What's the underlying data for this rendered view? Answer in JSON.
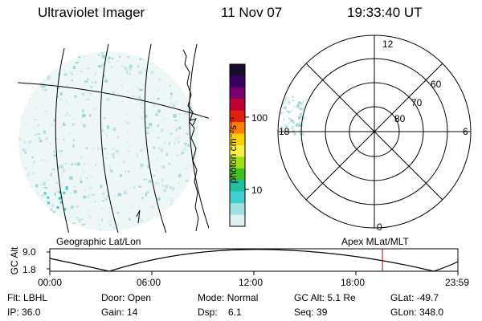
{
  "header": {
    "instrument": "Ultraviolet Imager",
    "date": "11 Nov 07",
    "time": "19:33:40 UT"
  },
  "colorbar": {
    "unit_label": "photon cm⁻²s⁻¹",
    "ticks": [
      "100",
      "10"
    ],
    "colors": [
      "#1a0a30",
      "#3a0060",
      "#7a0070",
      "#c00030",
      "#e02010",
      "#ff8000",
      "#ffd000",
      "#f8f040",
      "#a0e010",
      "#40c020",
      "#20c0a0",
      "#40d0d0",
      "#a0e0e0",
      "#e0f0f0"
    ]
  },
  "polar_plot": {
    "mlt_labels": {
      "top": "12",
      "left": "18",
      "right": "6",
      "bottom": "0"
    },
    "lat_labels": [
      "60",
      "70",
      "80"
    ]
  },
  "orbit_panel": {
    "left_label": "Geographic Lat/Lon",
    "right_label": "Apex MLat/MLT",
    "y_axis_label": "GC Alt",
    "y_ticks": [
      "9.0",
      "1.8"
    ],
    "x_ticks": [
      "00:00",
      "06:00",
      "12:00",
      "18:00",
      "23:59"
    ],
    "current_time_fraction": 0.8151,
    "marker_color": "#c00000"
  },
  "status": {
    "row1": [
      {
        "key": "Flt:",
        "value": "LBHL"
      },
      {
        "key": "Door:",
        "value": "Open"
      },
      {
        "key": "Mode:",
        "value": "Normal"
      },
      {
        "key": "GC Alt:",
        "value": "5.1 Re"
      },
      {
        "key": "GLat:",
        "value": "-49.7"
      }
    ],
    "row2": [
      {
        "key": "IP:",
        "value": "36.0"
      },
      {
        "key": "Gain:",
        "value": "14"
      },
      {
        "key": "Dsp:",
        "value": "6.1"
      },
      {
        "key": "Seq:",
        "value": "39"
      },
      {
        "key": "GLon:",
        "value": "348.0"
      }
    ]
  }
}
